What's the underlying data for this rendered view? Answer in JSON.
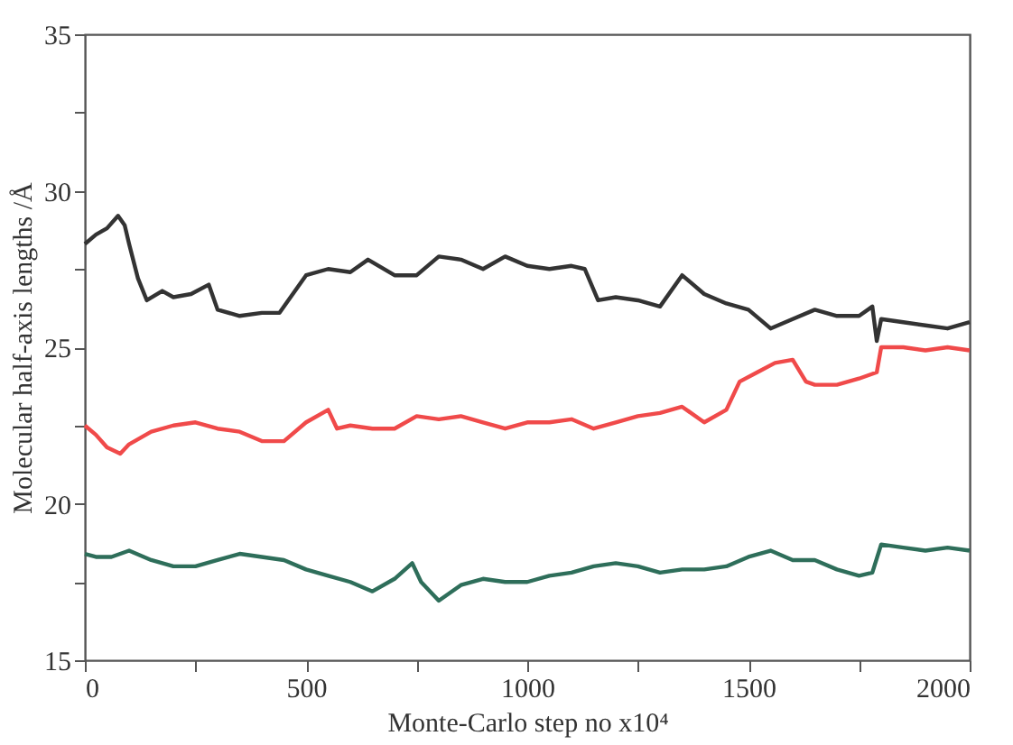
{
  "chart_data": {
    "type": "line",
    "xlabel": "Monte-Carlo step no x10⁴",
    "ylabel": "Molecular half-axis lengths /Å",
    "xlim": [
      0,
      2000
    ],
    "ylim": [
      15,
      35
    ],
    "xticks": [
      0,
      {
        "value": 250,
        "label": null
      },
      500,
      {
        "value": 750,
        "label": null
      },
      1000,
      {
        "value": 1250,
        "label": null
      },
      1500,
      {
        "value": 1750,
        "label": null
      },
      2000
    ],
    "yticks": [
      15,
      {
        "value": 17.5,
        "label": null
      },
      20,
      {
        "value": 22.5,
        "label": null
      },
      25,
      {
        "value": 27.5,
        "label": null
      },
      30,
      {
        "value": 32.5,
        "label": null
      },
      35
    ],
    "grid": false,
    "legend": false,
    "line_style": "solid",
    "marker": "none",
    "series": [
      {
        "color": "#333333",
        "x": [
          0,
          25,
          50,
          75,
          90,
          100,
          120,
          140,
          175,
          200,
          240,
          280,
          300,
          350,
          400,
          440,
          470,
          500,
          550,
          600,
          640,
          700,
          750,
          800,
          850,
          900,
          950,
          1000,
          1050,
          1100,
          1130,
          1160,
          1200,
          1250,
          1300,
          1350,
          1400,
          1450,
          1500,
          1550,
          1600,
          1650,
          1700,
          1750,
          1780,
          1790,
          1800,
          1850,
          1900,
          1950,
          2000
        ],
        "values": [
          28.3,
          28.6,
          28.8,
          29.2,
          28.9,
          28.3,
          27.2,
          26.5,
          26.8,
          26.6,
          26.7,
          27.0,
          26.2,
          26.0,
          26.1,
          26.1,
          26.7,
          27.3,
          27.5,
          27.4,
          27.8,
          27.3,
          27.3,
          27.9,
          27.8,
          27.5,
          27.9,
          27.6,
          27.5,
          27.6,
          27.5,
          26.5,
          26.6,
          26.5,
          26.3,
          27.3,
          26.7,
          26.4,
          26.2,
          25.6,
          25.9,
          26.2,
          26.0,
          26.0,
          26.3,
          25.2,
          25.9,
          25.8,
          25.7,
          25.6,
          25.8
        ]
      },
      {
        "color": "#f04a4a",
        "x": [
          0,
          25,
          50,
          80,
          100,
          150,
          200,
          250,
          300,
          350,
          400,
          450,
          500,
          550,
          570,
          600,
          650,
          700,
          750,
          800,
          850,
          900,
          950,
          1000,
          1050,
          1100,
          1150,
          1200,
          1250,
          1300,
          1350,
          1400,
          1450,
          1480,
          1520,
          1560,
          1600,
          1630,
          1650,
          1700,
          1750,
          1790,
          1800,
          1850,
          1900,
          1950,
          2000
        ],
        "values": [
          22.5,
          22.2,
          21.8,
          21.6,
          21.9,
          22.3,
          22.5,
          22.6,
          22.4,
          22.3,
          22.0,
          22.0,
          22.6,
          23.0,
          22.4,
          22.5,
          22.4,
          22.4,
          22.8,
          22.7,
          22.8,
          22.6,
          22.4,
          22.6,
          22.6,
          22.7,
          22.4,
          22.6,
          22.8,
          22.9,
          23.1,
          22.6,
          23.0,
          23.9,
          24.2,
          24.5,
          24.6,
          23.9,
          23.8,
          23.8,
          24.0,
          24.2,
          25.0,
          25.0,
          24.9,
          25.0,
          24.9
        ]
      },
      {
        "color": "#2e6e5a",
        "x": [
          0,
          25,
          60,
          100,
          150,
          200,
          250,
          300,
          350,
          400,
          450,
          500,
          550,
          600,
          650,
          700,
          740,
          760,
          800,
          850,
          900,
          950,
          1000,
          1050,
          1100,
          1150,
          1200,
          1250,
          1300,
          1350,
          1400,
          1450,
          1500,
          1550,
          1600,
          1650,
          1700,
          1750,
          1780,
          1800,
          1850,
          1900,
          1950,
          2000
        ],
        "values": [
          18.4,
          18.3,
          18.3,
          18.5,
          18.2,
          18.0,
          18.0,
          18.2,
          18.4,
          18.3,
          18.2,
          17.9,
          17.7,
          17.5,
          17.2,
          17.6,
          18.1,
          17.5,
          16.9,
          17.4,
          17.6,
          17.5,
          17.5,
          17.7,
          17.8,
          18.0,
          18.1,
          18.0,
          17.8,
          17.9,
          17.9,
          18.0,
          18.3,
          18.5,
          18.2,
          18.2,
          17.9,
          17.7,
          17.8,
          18.7,
          18.6,
          18.5,
          18.6,
          18.5
        ]
      }
    ]
  }
}
